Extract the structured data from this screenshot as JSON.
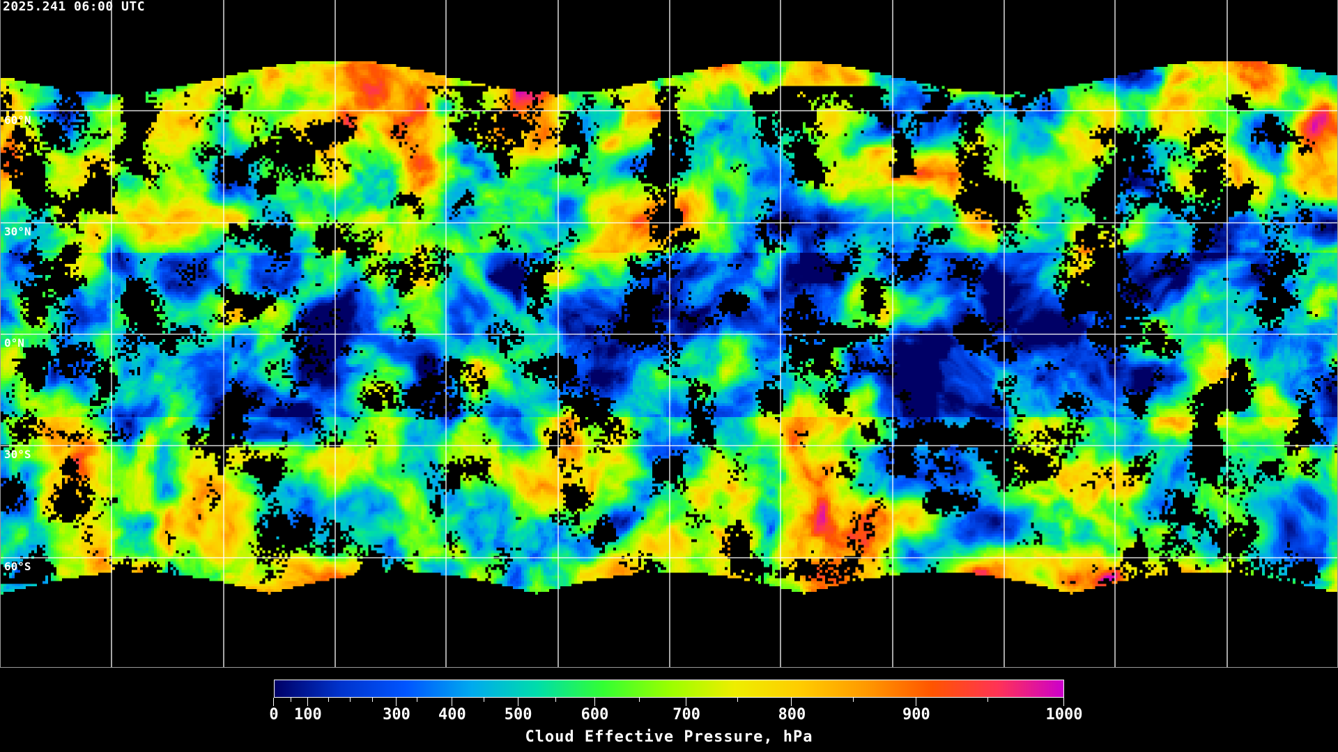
{
  "header": {
    "timestamp": "2025.241 06:00 UTC"
  },
  "map": {
    "lat_labels": [
      "60°N",
      "30°N",
      "0°N",
      "30°S",
      "60°S"
    ],
    "gridline_color": "#ffffff",
    "coastline_color": "#ffffff",
    "no_data_color": "#000000"
  },
  "colorbar": {
    "title": "Cloud Effective Pressure, hPa",
    "range": [
      0,
      1000
    ],
    "tick_labels": [
      "0",
      "100",
      "300",
      "400",
      "500",
      "600",
      "700",
      "800",
      "900",
      "1000"
    ],
    "colormap": [
      "#000066",
      "#0033cc",
      "#0055ff",
      "#00aaee",
      "#00ddaa",
      "#33ff33",
      "#99ff00",
      "#eeee00",
      "#ffcc00",
      "#ff9900",
      "#ff5500",
      "#ff3355",
      "#cc00cc"
    ]
  }
}
